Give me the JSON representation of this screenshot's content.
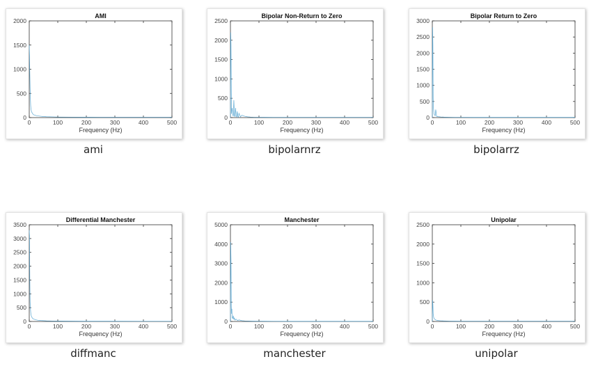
{
  "chart_data": [
    {
      "type": "line",
      "title": "AMI",
      "xlabel": "Frequency (Hz)",
      "ylabel": "",
      "xlim": [
        0,
        500
      ],
      "ylim": [
        0,
        2000
      ],
      "xticks": [
        "0",
        "100",
        "200",
        "300",
        "400",
        "500"
      ],
      "yticks": [
        "0",
        "500",
        "1000",
        "1500",
        "2000"
      ],
      "caption": "ami",
      "series": [
        {
          "color": "#5aa7d2",
          "x": [
            0,
            1,
            2,
            3,
            4,
            5,
            6,
            7,
            8,
            10,
            12,
            15,
            20,
            25,
            30,
            40,
            50,
            60,
            80,
            100,
            150,
            200,
            250,
            300,
            350,
            400,
            450,
            500
          ],
          "y": [
            1500,
            1300,
            900,
            600,
            400,
            250,
            180,
            150,
            120,
            100,
            80,
            60,
            50,
            40,
            35,
            28,
            22,
            18,
            15,
            12,
            10,
            9,
            8,
            8,
            8,
            8,
            8,
            8
          ]
        }
      ]
    },
    {
      "type": "line",
      "title": "Bipolar Non-Return to Zero",
      "xlabel": "Frequency (Hz)",
      "ylabel": "",
      "xlim": [
        0,
        500
      ],
      "ylim": [
        0,
        2500
      ],
      "xticks": [
        "0",
        "100",
        "200",
        "300",
        "400",
        "500"
      ],
      "yticks": [
        "0",
        "500",
        "1000",
        "1500",
        "2000",
        "2500"
      ],
      "caption": "bipolarnrz",
      "series": [
        {
          "color": "#5aa7d2",
          "x": [
            0,
            1,
            2,
            3,
            4,
            6,
            8,
            10,
            12,
            14,
            16,
            18,
            20,
            22,
            24,
            26,
            28,
            30,
            35,
            40,
            50,
            60,
            70,
            80,
            100,
            150,
            200,
            300,
            400,
            500
          ],
          "y": [
            0,
            2200,
            1900,
            700,
            100,
            250,
            80,
            30,
            450,
            60,
            20,
            250,
            40,
            15,
            160,
            30,
            10,
            110,
            20,
            60,
            35,
            20,
            15,
            12,
            10,
            8,
            8,
            8,
            8,
            8
          ]
        }
      ]
    },
    {
      "type": "line",
      "title": "Bipolar Return to Zero",
      "xlabel": "Frequency (Hz)",
      "ylabel": "",
      "xlim": [
        0,
        500
      ],
      "ylim": [
        0,
        3000
      ],
      "xticks": [
        "0",
        "100",
        "200",
        "300",
        "400",
        "500"
      ],
      "yticks": [
        "0",
        "500",
        "1000",
        "1500",
        "2000",
        "2500",
        "3000"
      ],
      "caption": "bipolarrz",
      "series": [
        {
          "color": "#5aa7d2",
          "x": [
            0,
            1,
            2,
            3,
            4,
            5,
            6,
            8,
            10,
            12,
            15,
            20,
            25,
            30,
            40,
            50,
            60,
            80,
            100,
            150,
            200,
            300,
            400,
            500
          ],
          "y": [
            0,
            2800,
            2300,
            600,
            300,
            200,
            120,
            80,
            60,
            250,
            40,
            30,
            25,
            20,
            16,
            14,
            12,
            10,
            9,
            8,
            8,
            8,
            8,
            8
          ]
        }
      ]
    },
    {
      "type": "line",
      "title": "Differential Manchester",
      "xlabel": "Frequency (Hz)",
      "ylabel": "",
      "xlim": [
        0,
        500
      ],
      "ylim": [
        0,
        3500
      ],
      "xticks": [
        "0",
        "100",
        "200",
        "300",
        "400",
        "500"
      ],
      "yticks": [
        "0",
        "500",
        "1000",
        "1500",
        "2000",
        "2500",
        "3000",
        "3500"
      ],
      "caption": "diffmanc",
      "series": [
        {
          "color": "#5aa7d2",
          "x": [
            0,
            1,
            2,
            3,
            4,
            5,
            6,
            8,
            10,
            12,
            15,
            20,
            25,
            30,
            40,
            50,
            60,
            80,
            100,
            150,
            200,
            300,
            400,
            500
          ],
          "y": [
            3300,
            3100,
            1500,
            700,
            500,
            350,
            250,
            180,
            140,
            110,
            90,
            70,
            55,
            45,
            35,
            28,
            22,
            18,
            15,
            12,
            10,
            9,
            8,
            8
          ]
        }
      ]
    },
    {
      "type": "line",
      "title": "Manchester",
      "xlabel": "Frequency (Hz)",
      "ylabel": "",
      "xlim": [
        0,
        500
      ],
      "ylim": [
        0,
        5000
      ],
      "xticks": [
        "0",
        "100",
        "200",
        "300",
        "400",
        "500"
      ],
      "yticks": [
        "0",
        "1000",
        "2000",
        "3000",
        "4000",
        "5000"
      ],
      "caption": "manchester",
      "series": [
        {
          "color": "#5aa7d2",
          "x": [
            0,
            1,
            2,
            3,
            4,
            5,
            6,
            8,
            10,
            12,
            14,
            16,
            20,
            25,
            30,
            40,
            50,
            60,
            80,
            100,
            150,
            200,
            300,
            400,
            500
          ],
          "y": [
            0,
            4100,
            3200,
            800,
            400,
            650,
            200,
            150,
            300,
            100,
            180,
            70,
            120,
            50,
            80,
            40,
            30,
            25,
            18,
            15,
            12,
            10,
            9,
            8,
            8
          ]
        }
      ]
    },
    {
      "type": "line",
      "title": "Unipolar",
      "xlabel": "Frequency (Hz)",
      "ylabel": "",
      "xlim": [
        0,
        500
      ],
      "ylim": [
        0,
        2500
      ],
      "xticks": [
        "0",
        "100",
        "200",
        "300",
        "400",
        "500"
      ],
      "yticks": [
        "0",
        "500",
        "1000",
        "1500",
        "2000",
        "2500"
      ],
      "caption": "unipolar",
      "series": [
        {
          "color": "#5aa7d2",
          "x": [
            0,
            1,
            2,
            3,
            4,
            5,
            6,
            8,
            10,
            12,
            15,
            20,
            25,
            30,
            40,
            50,
            60,
            80,
            100,
            150,
            200,
            300,
            400,
            500
          ],
          "y": [
            0,
            550,
            450,
            200,
            150,
            100,
            80,
            60,
            50,
            40,
            32,
            25,
            20,
            17,
            14,
            12,
            10,
            9,
            8,
            8,
            8,
            8,
            8,
            8
          ]
        }
      ]
    }
  ]
}
